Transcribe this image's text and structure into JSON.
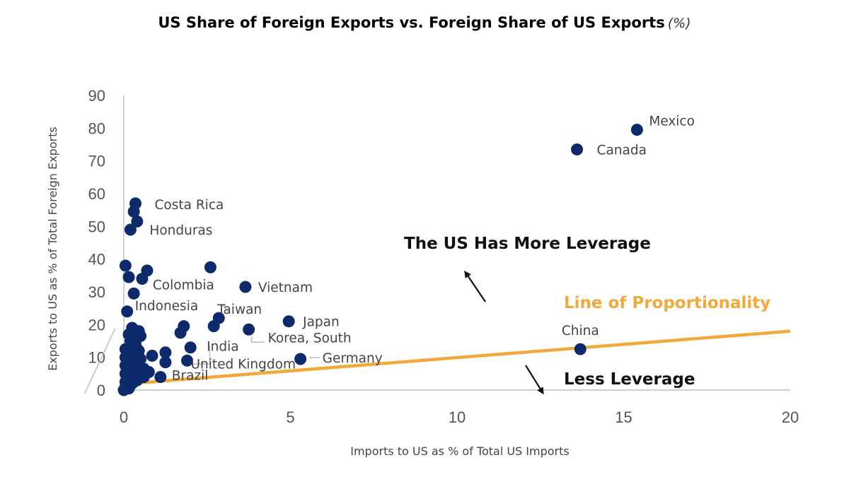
{
  "chart_data": {
    "type": "scatter",
    "title": "US Share of Foreign Exports vs. Foreign Share of US Exports",
    "title_unit": "(%)",
    "xlabel": "Imports to US as % of Total US Imports",
    "ylabel": "Exports to US as % of Total Foreign Exports",
    "xlim": [
      0,
      20
    ],
    "ylim": [
      0,
      90
    ],
    "xticks": [
      0,
      5,
      10,
      15,
      20
    ],
    "yticks": [
      0,
      10,
      20,
      30,
      40,
      50,
      60,
      70,
      80,
      90
    ],
    "grid": false,
    "marker_color": "#0d2b6b",
    "line_color": "#f2a93b",
    "labeled_points": [
      {
        "label": "Mexico",
        "x": 15.4,
        "y": 79.5
      },
      {
        "label": "Canada",
        "x": 13.6,
        "y": 73.5
      },
      {
        "label": "China",
        "x": 13.7,
        "y": 12.5
      },
      {
        "label": "Costa Rica",
        "x": 0.35,
        "y": 57.0
      },
      {
        "label": "Honduras",
        "x": 0.2,
        "y": 49.0
      },
      {
        "label": "Colombia",
        "x": 0.55,
        "y": 34.0
      },
      {
        "label": "Vietnam",
        "x": 3.65,
        "y": 31.5
      },
      {
        "label": "Indonesia",
        "x": 0.1,
        "y": 24.0
      },
      {
        "label": "Taiwan",
        "x": 2.85,
        "y": 22.0
      },
      {
        "label": "Japan",
        "x": 4.95,
        "y": 21.0
      },
      {
        "label": "India",
        "x": 2.7,
        "y": 19.5
      },
      {
        "label": "Korea, South",
        "x": 3.75,
        "y": 18.5
      },
      {
        "label": "Germany",
        "x": 5.3,
        "y": 9.5
      },
      {
        "label": "United Kingdom",
        "x": 1.9,
        "y": 9.0
      },
      {
        "label": "Brazil",
        "x": 1.1,
        "y": 4.0
      }
    ],
    "other_points": [
      {
        "x": 0.05,
        "y": 38.0
      },
      {
        "x": 0.7,
        "y": 36.5
      },
      {
        "x": 2.6,
        "y": 37.5
      },
      {
        "x": 0.3,
        "y": 54.5
      },
      {
        "x": 0.4,
        "y": 51.5
      },
      {
        "x": 0.15,
        "y": 34.5
      },
      {
        "x": 0.3,
        "y": 29.5
      },
      {
        "x": 1.8,
        "y": 19.5
      },
      {
        "x": 1.7,
        "y": 17.5
      },
      {
        "x": 0.25,
        "y": 19.0
      },
      {
        "x": 0.45,
        "y": 18.0
      },
      {
        "x": 0.15,
        "y": 17.0
      },
      {
        "x": 0.5,
        "y": 16.5
      },
      {
        "x": 0.2,
        "y": 15.0
      },
      {
        "x": 0.35,
        "y": 14.0
      },
      {
        "x": 2.0,
        "y": 13.0
      },
      {
        "x": 0.05,
        "y": 12.5
      },
      {
        "x": 0.25,
        "y": 12.5
      },
      {
        "x": 0.45,
        "y": 12.0
      },
      {
        "x": 1.25,
        "y": 11.5
      },
      {
        "x": 0.15,
        "y": 11.0
      },
      {
        "x": 0.35,
        "y": 10.5
      },
      {
        "x": 0.85,
        "y": 10.5
      },
      {
        "x": 0.05,
        "y": 10.0
      },
      {
        "x": 0.25,
        "y": 9.5
      },
      {
        "x": 0.5,
        "y": 9.5
      },
      {
        "x": 1.25,
        "y": 8.5
      },
      {
        "x": 0.15,
        "y": 8.5
      },
      {
        "x": 0.4,
        "y": 8.0
      },
      {
        "x": 0.05,
        "y": 7.5
      },
      {
        "x": 0.3,
        "y": 7.0
      },
      {
        "x": 0.6,
        "y": 6.5
      },
      {
        "x": 0.15,
        "y": 6.0
      },
      {
        "x": 0.45,
        "y": 5.5
      },
      {
        "x": 0.75,
        "y": 5.5
      },
      {
        "x": 0.05,
        "y": 5.0
      },
      {
        "x": 0.3,
        "y": 4.5
      },
      {
        "x": 0.6,
        "y": 4.0
      },
      {
        "x": 0.15,
        "y": 3.5
      },
      {
        "x": 0.4,
        "y": 3.0
      },
      {
        "x": 0.05,
        "y": 2.5
      },
      {
        "x": 0.25,
        "y": 2.0
      },
      {
        "x": 0.1,
        "y": 1.5
      },
      {
        "x": 0.05,
        "y": 1.0
      },
      {
        "x": 0.15,
        "y": 0.5
      },
      {
        "x": 0.0,
        "y": 0.0
      }
    ],
    "line_of_proportionality": {
      "label": "Line of Proportionality",
      "points": [
        {
          "x": 0.2,
          "y": 2.0
        },
        {
          "x": 20.0,
          "y": 18.0
        }
      ]
    },
    "annotations": {
      "upper": "The US Has More Leverage",
      "lower": "Less Leverage"
    }
  }
}
